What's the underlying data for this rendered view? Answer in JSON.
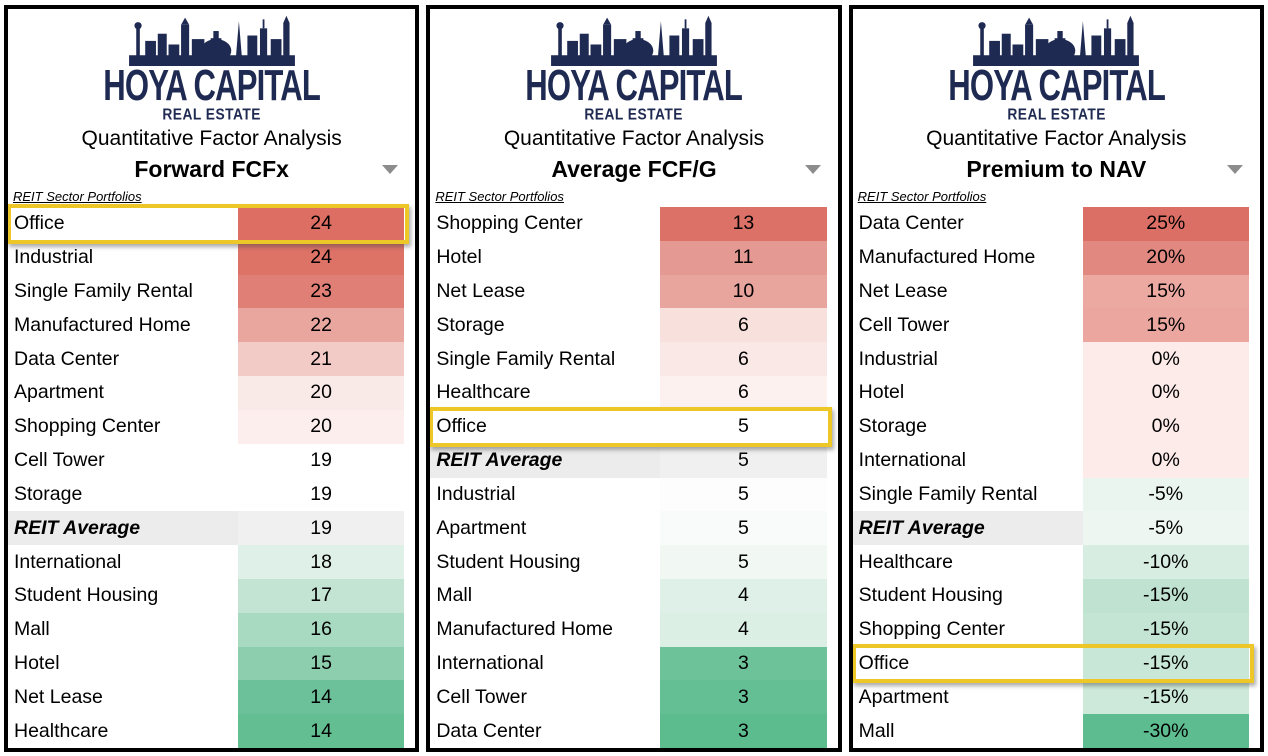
{
  "brand": {
    "name": "HOYA CAPITAL",
    "subtitle": "REAL ESTATE"
  },
  "report_title": "Quantitative Factor Analysis",
  "table_header": "REIT Sector Portfolios",
  "accents": {
    "navy": "#1F2A52",
    "highlight_border": "#EDC728",
    "average_row_bg": "#ECECEC",
    "caret_gray": "#8C8C8C",
    "max_red": "#DC6E63",
    "max_green": "#57BB8A"
  },
  "panels": [
    {
      "metric": "Forward FCFx",
      "rows": [
        {
          "label": "Office",
          "value": "24",
          "color": "#DC6E63",
          "highlight": true
        },
        {
          "label": "Industrial",
          "value": "24",
          "color": "#DD7267"
        },
        {
          "label": "Single Family Rental",
          "value": "23",
          "color": "#E07F75"
        },
        {
          "label": "Manufactured Home",
          "value": "22",
          "color": "#E9A69E"
        },
        {
          "label": "Data Center",
          "value": "21",
          "color": "#F2CBC6"
        },
        {
          "label": "Apartment",
          "value": "20",
          "color": "#FAEAE7"
        },
        {
          "label": "Shopping Center",
          "value": "20",
          "color": "#FBEEEC"
        },
        {
          "label": "Cell Tower",
          "value": "19",
          "color": "#FFFFFF"
        },
        {
          "label": "Storage",
          "value": "19",
          "color": "#FFFFFF"
        },
        {
          "label": "REIT Average",
          "value": "19",
          "color": "#F0F0F0",
          "average": true
        },
        {
          "label": "International",
          "value": "18",
          "color": "#DFF0E8"
        },
        {
          "label": "Student Housing",
          "value": "17",
          "color": "#C3E4D3"
        },
        {
          "label": "Mall",
          "value": "16",
          "color": "#A8D9C1"
        },
        {
          "label": "Hotel",
          "value": "15",
          "color": "#8DCEAF"
        },
        {
          "label": "Net Lease",
          "value": "14",
          "color": "#6CC19B"
        },
        {
          "label": "Healthcare",
          "value": "14",
          "color": "#63BE92"
        }
      ]
    },
    {
      "metric": "Average FCF/G",
      "rows": [
        {
          "label": "Shopping Center",
          "value": "13",
          "color": "#DC7167"
        },
        {
          "label": "Hotel",
          "value": "11",
          "color": "#E49A92"
        },
        {
          "label": "Net Lease",
          "value": "10",
          "color": "#E7A59E"
        },
        {
          "label": "Storage",
          "value": "6",
          "color": "#F8E0DD"
        },
        {
          "label": "Single Family Rental",
          "value": "6",
          "color": "#FAE8E6"
        },
        {
          "label": "Healthcare",
          "value": "6",
          "color": "#FCF1EF"
        },
        {
          "label": "Office",
          "value": "5",
          "color": "#FFFFFF",
          "highlight": true
        },
        {
          "label": "REIT Average",
          "value": "5",
          "color": "#F0F0F0",
          "average": true
        },
        {
          "label": "Industrial",
          "value": "5",
          "color": "#FDFDFD"
        },
        {
          "label": "Apartment",
          "value": "5",
          "color": "#F8FBF9"
        },
        {
          "label": "Student Housing",
          "value": "5",
          "color": "#F1F8F4"
        },
        {
          "label": "Mall",
          "value": "4",
          "color": "#DFF0E8"
        },
        {
          "label": "Manufactured Home",
          "value": "4",
          "color": "#DCEFE5"
        },
        {
          "label": "International",
          "value": "3",
          "color": "#6DC29A"
        },
        {
          "label": "Cell Tower",
          "value": "3",
          "color": "#65BF94"
        },
        {
          "label": "Data Center",
          "value": "3",
          "color": "#5CBC8E"
        }
      ]
    },
    {
      "metric": "Premium to NAV",
      "rows": [
        {
          "label": "Data Center",
          "value": "25%",
          "color": "#DB6F65"
        },
        {
          "label": "Manufactured Home",
          "value": "20%",
          "color": "#E18880"
        },
        {
          "label": "Net Lease",
          "value": "15%",
          "color": "#EBA9A2"
        },
        {
          "label": "Cell Tower",
          "value": "15%",
          "color": "#EAA69F"
        },
        {
          "label": "Industrial",
          "value": "0%",
          "color": "#FCEBE9"
        },
        {
          "label": "Hotel",
          "value": "0%",
          "color": "#FCEBE9"
        },
        {
          "label": "Storage",
          "value": "0%",
          "color": "#FCEBE9"
        },
        {
          "label": "International",
          "value": "0%",
          "color": "#FCEBE9"
        },
        {
          "label": "Single Family Rental",
          "value": "-5%",
          "color": "#EBF5F0"
        },
        {
          "label": "REIT Average",
          "value": "-5%",
          "color": "#EDF6F1",
          "average": true
        },
        {
          "label": "Healthcare",
          "value": "-10%",
          "color": "#D8EDE2"
        },
        {
          "label": "Student Housing",
          "value": "-15%",
          "color": "#C0E3D1"
        },
        {
          "label": "Shopping Center",
          "value": "-15%",
          "color": "#C4E5D3"
        },
        {
          "label": "Office",
          "value": "-15%",
          "color": "#C8E7D6",
          "highlight": true
        },
        {
          "label": "Apartment",
          "value": "-15%",
          "color": "#CDE9D9"
        },
        {
          "label": "Mall",
          "value": "-30%",
          "color": "#5DBD90"
        }
      ]
    }
  ],
  "chart_data": [
    {
      "type": "table",
      "title": "Quantitative Factor Analysis — Forward FCFx",
      "subtitle": "REIT Sector Portfolios",
      "categories": [
        "Office",
        "Industrial",
        "Single Family Rental",
        "Manufactured Home",
        "Data Center",
        "Apartment",
        "Shopping Center",
        "Cell Tower",
        "Storage",
        "REIT Average",
        "International",
        "Student Housing",
        "Mall",
        "Hotel",
        "Net Lease",
        "Healthcare"
      ],
      "values": [
        24,
        24,
        23,
        22,
        21,
        20,
        20,
        19,
        19,
        19,
        18,
        17,
        16,
        15,
        14,
        14
      ],
      "highlighted_category": "Office",
      "color_scale": "red(high)-white-green(low)"
    },
    {
      "type": "table",
      "title": "Quantitative Factor Analysis — Average FCF/G",
      "subtitle": "REIT Sector Portfolios",
      "categories": [
        "Shopping Center",
        "Hotel",
        "Net Lease",
        "Storage",
        "Single Family Rental",
        "Healthcare",
        "Office",
        "REIT Average",
        "Industrial",
        "Apartment",
        "Student Housing",
        "Mall",
        "Manufactured Home",
        "International",
        "Cell Tower",
        "Data Center"
      ],
      "values": [
        13,
        11,
        10,
        6,
        6,
        6,
        5,
        5,
        5,
        5,
        5,
        4,
        4,
        3,
        3,
        3
      ],
      "highlighted_category": "Office",
      "color_scale": "red(high)-white-green(low)"
    },
    {
      "type": "table",
      "title": "Quantitative Factor Analysis — Premium to NAV",
      "subtitle": "REIT Sector Portfolios",
      "categories": [
        "Data Center",
        "Manufactured Home",
        "Net Lease",
        "Cell Tower",
        "Industrial",
        "Hotel",
        "Storage",
        "International",
        "Single Family Rental",
        "REIT Average",
        "Healthcare",
        "Student Housing",
        "Shopping Center",
        "Office",
        "Apartment",
        "Mall"
      ],
      "values_pct": [
        25,
        20,
        15,
        15,
        0,
        0,
        0,
        0,
        -5,
        -5,
        -10,
        -15,
        -15,
        -15,
        -15,
        -30
      ],
      "highlighted_category": "Office",
      "color_scale": "red(high)-white-green(low)"
    }
  ]
}
